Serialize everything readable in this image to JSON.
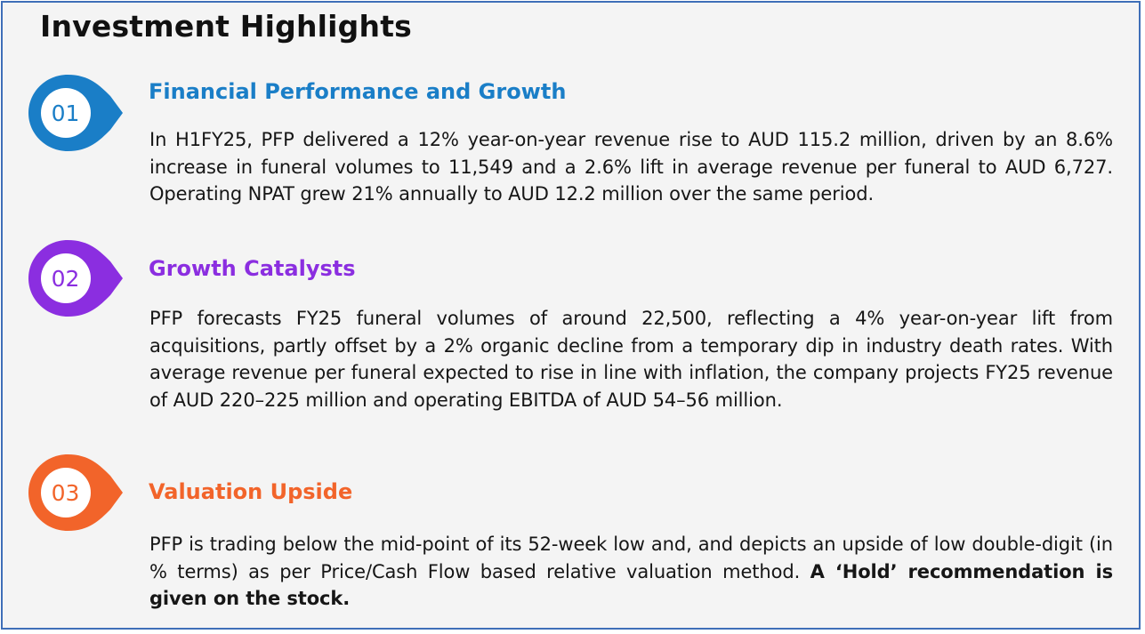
{
  "title": "Investment Highlights",
  "sections": [
    {
      "number": "01",
      "heading": "Financial Performance and Growth",
      "color": "#1a7ec7",
      "body": "In H1FY25, PFP delivered a 12% year-on-year revenue rise to AUD 115.2 million, driven by an 8.6% increase in funeral volumes to 11,549 and a 2.6% lift in average revenue per funeral to AUD 6,727. Operating NPAT grew 21% annually to AUD 12.2 million over the same period."
    },
    {
      "number": "02",
      "heading": "Growth Catalysts",
      "color": "#8b2ee0",
      "body": "PFP forecasts FY25 funeral volumes of around 22,500, reflecting a 4% year-on-year lift from acquisitions, partly offset by a 2% organic decline from a temporary dip in industry death rates. With average revenue per funeral expected to rise in line with inflation, the company projects FY25 revenue of AUD 220–225 million and operating EBITDA of AUD 54–56 million."
    },
    {
      "number": "03",
      "heading": "Valuation Upside",
      "color": "#f2642a",
      "body": "PFP is trading below the mid-point of its 52-week low and, and depicts an upside of low double-digit (in % terms) as per Price/Cash Flow based relative valuation method.",
      "body_bold": "A ‘Hold’ recommendation is given on the stock."
    }
  ]
}
